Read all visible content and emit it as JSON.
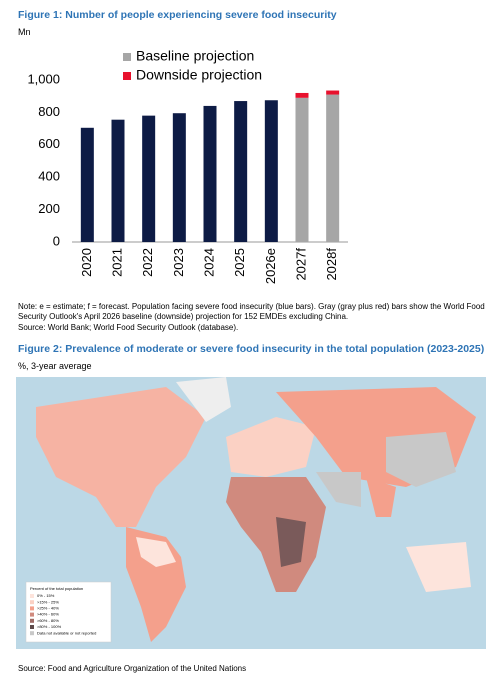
{
  "figure1": {
    "title": "Figure 1: Number of people experiencing severe food insecurity",
    "unit": "Mn",
    "note": "Note: e = estimate; f = forecast. Population facing severe food insecurity (blue bars). Gray (gray plus red) bars show the World Food Security Outlook's April 2026 baseline (downside) projection for 152 EMDEs excluding China.",
    "source": "Source: World Bank; World Food Security Outlook (database)."
  },
  "chart_data": {
    "type": "stacked-bar",
    "categories": [
      "2020",
      "2021",
      "2022",
      "2023",
      "2024",
      "2025",
      "2026e",
      "2027f",
      "2028f"
    ],
    "series": [
      {
        "color": "#0d1b45",
        "values": [
          705,
          755,
          780,
          795,
          840,
          870,
          875,
          null,
          null
        ]
      },
      {
        "name": "Baseline projection",
        "color": "#a6a6a6",
        "values": [
          null,
          null,
          null,
          null,
          null,
          null,
          null,
          890,
          910
        ]
      },
      {
        "name": "Downside projection",
        "color": "#e8112d",
        "values": [
          null,
          null,
          null,
          null,
          null,
          null,
          null,
          30,
          25
        ]
      }
    ],
    "ylim": [
      0,
      1000
    ],
    "yticks": [
      0,
      200,
      400,
      600,
      800,
      {
        "value": 1000,
        "label": "1,000"
      }
    ],
    "grid": false
  },
  "figure2": {
    "title": "Figure 2: Prevalence of moderate or severe food insecurity in the total population (2023-2025)",
    "subtitle": "%, 3-year average",
    "legend": {
      "title": "Percent of the total population",
      "items": [
        "0% - 15%",
        ">15% - 25%",
        ">25% - 40%",
        ">40% - 60%",
        ">60% - 80%",
        ">80% - 100%",
        "Data not available or not reported"
      ]
    },
    "source": "Source: Food and Agriculture Organization of the United Nations"
  }
}
